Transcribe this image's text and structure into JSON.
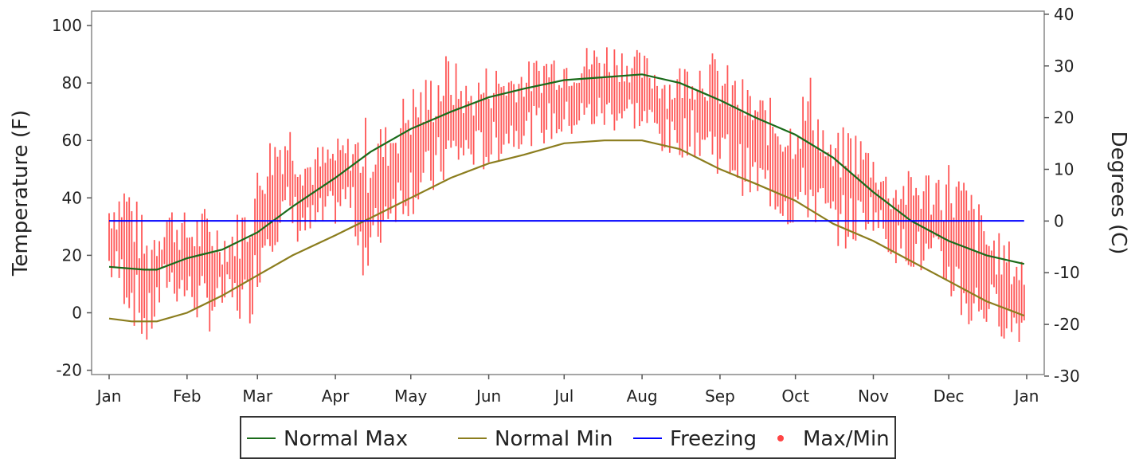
{
  "chart_data": {
    "type": "line",
    "title": "",
    "ylabel": "Temperature (F)",
    "y2label": "Degrees (C)",
    "ylim": [
      -21.5,
      105
    ],
    "y2lim": [
      -29.7,
      40.6
    ],
    "yticks": [
      -20,
      0,
      20,
      40,
      60,
      80,
      100
    ],
    "y2ticks": [
      -30,
      -20,
      -10,
      0,
      10,
      20,
      30,
      40
    ],
    "xlim": [
      1,
      366
    ],
    "xticks": [
      {
        "day": 1,
        "label": "Jan"
      },
      {
        "day": 32,
        "label": "Feb"
      },
      {
        "day": 60,
        "label": "Mar"
      },
      {
        "day": 91,
        "label": "Apr"
      },
      {
        "day": 121,
        "label": "May"
      },
      {
        "day": 152,
        "label": "Jun"
      },
      {
        "day": 182,
        "label": "Jul"
      },
      {
        "day": 213,
        "label": "Aug"
      },
      {
        "day": 244,
        "label": "Sep"
      },
      {
        "day": 274,
        "label": "Oct"
      },
      {
        "day": 305,
        "label": "Nov"
      },
      {
        "day": 335,
        "label": "Dec"
      },
      {
        "day": 366,
        "label": "Jan"
      }
    ],
    "grid": false,
    "legend_position": "bottom",
    "series": [
      {
        "name": "Normal Max",
        "color": "#1a6b1a",
        "x": [
          1,
          15,
          20,
          32,
          46,
          60,
          74,
          91,
          105,
          121,
          137,
          152,
          166,
          182,
          198,
          213,
          228,
          244,
          258,
          274,
          289,
          305,
          320,
          335,
          350,
          365
        ],
        "y": [
          16,
          15,
          15,
          19,
          22,
          28,
          37,
          47,
          56,
          64,
          70,
          75,
          78,
          81,
          82,
          83,
          80,
          74,
          68,
          62,
          54,
          42,
          32,
          25,
          20,
          17
        ]
      },
      {
        "name": "Normal Min",
        "color": "#8b7d1e",
        "x": [
          1,
          10,
          20,
          32,
          46,
          60,
          74,
          91,
          105,
          121,
          137,
          152,
          166,
          182,
          198,
          213,
          228,
          244,
          258,
          274,
          289,
          305,
          320,
          335,
          350,
          365
        ],
        "y": [
          -2,
          -3,
          -3,
          0,
          6,
          13,
          20,
          27,
          33,
          40,
          47,
          52,
          55,
          59,
          60,
          60,
          57,
          50,
          45,
          39,
          31,
          25,
          18,
          11,
          4,
          -1
        ]
      },
      {
        "name": "Freezing",
        "color": "#0000ff",
        "x": [
          1,
          365
        ],
        "y": [
          32,
          32
        ]
      },
      {
        "name": "Max/Min",
        "color": "#ff4444",
        "x": [
          1,
          8,
          16,
          24,
          32,
          40,
          48,
          56,
          64,
          72,
          80,
          88,
          96,
          104,
          112,
          120,
          128,
          136,
          144,
          152,
          160,
          168,
          176,
          184,
          192,
          200,
          208,
          216,
          224,
          232,
          240,
          248,
          256,
          264,
          272,
          280,
          288,
          296,
          304,
          312,
          320,
          328,
          336,
          344,
          352,
          360,
          365
        ],
        "max": [
          42,
          50,
          30,
          40,
          35,
          38,
          30,
          42,
          62,
          70,
          58,
          60,
          62,
          70,
          66,
          80,
          84,
          92,
          80,
          88,
          86,
          88,
          93,
          92,
          94,
          96,
          93,
          90,
          85,
          90,
          92,
          86,
          80,
          75,
          70,
          84,
          60,
          68,
          58,
          48,
          50,
          52,
          55,
          45,
          30,
          25,
          20
        ],
        "min": [
          10,
          0,
          -15,
          5,
          0,
          -8,
          0,
          -8,
          20,
          25,
          22,
          27,
          35,
          5,
          30,
          33,
          36,
          45,
          50,
          48,
          56,
          58,
          58,
          60,
          62,
          62,
          64,
          60,
          52,
          55,
          50,
          45,
          38,
          35,
          28,
          30,
          25,
          20,
          30,
          18,
          15,
          8,
          2,
          -10,
          -5,
          -12,
          -10
        ]
      }
    ]
  },
  "legend": {
    "items": [
      {
        "label": "Normal Max",
        "color": "#1a6b1a",
        "symbol": "line"
      },
      {
        "label": "Normal Min",
        "color": "#8b7d1e",
        "symbol": "line"
      },
      {
        "label": "Freezing",
        "color": "#0000ff",
        "symbol": "line"
      },
      {
        "label": "Max/Min",
        "color": "#ff4444",
        "symbol": "dot"
      }
    ]
  }
}
